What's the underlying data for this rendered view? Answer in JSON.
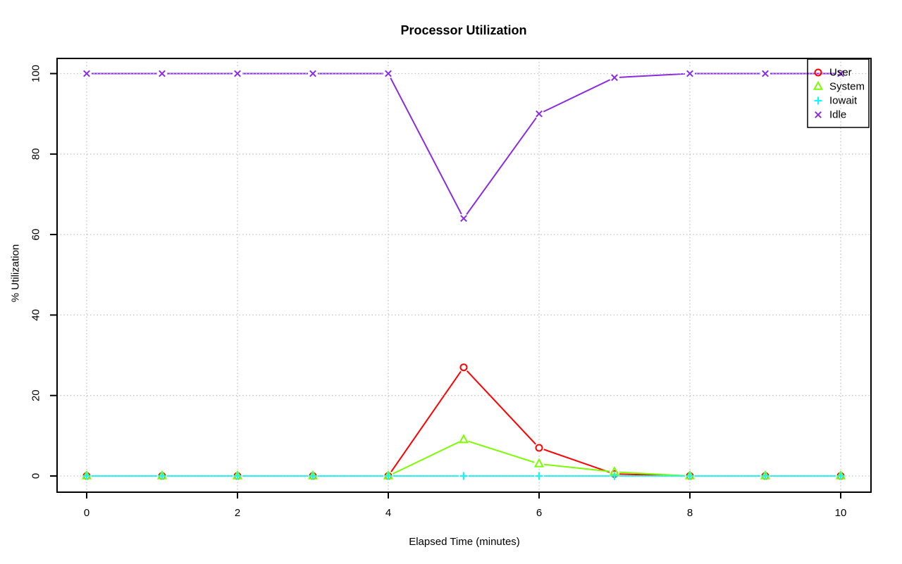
{
  "chart_data": {
    "type": "line",
    "title": "Processor Utilization",
    "xlabel": "Elapsed Time (minutes)",
    "ylabel": "% Utilization",
    "x": [
      0,
      1,
      2,
      3,
      4,
      5,
      6,
      7,
      8,
      9,
      10
    ],
    "series": [
      {
        "name": "User",
        "color": "#ff0000",
        "marker": "circle",
        "values": [
          0,
          0,
          0,
          0,
          0,
          27,
          7,
          0.5,
          0,
          0,
          0
        ]
      },
      {
        "name": "System",
        "color": "#7cfc00",
        "marker": "triangle",
        "values": [
          0,
          0,
          0,
          0,
          0,
          9,
          3,
          1,
          0,
          0,
          0
        ]
      },
      {
        "name": "Iowait",
        "color": "#00ffff",
        "marker": "plus",
        "values": [
          0,
          0,
          0,
          0,
          0,
          0,
          0,
          0,
          0,
          0,
          0
        ]
      },
      {
        "name": "Idle",
        "color": "#8a2be2",
        "marker": "x",
        "values": [
          100,
          100,
          100,
          100,
          100,
          64,
          90,
          99,
          100,
          100,
          100
        ]
      }
    ],
    "xticks": [
      0,
      2,
      4,
      6,
      8,
      10
    ],
    "yticks": [
      0,
      20,
      40,
      60,
      80,
      100
    ],
    "xlim": [
      0,
      10
    ],
    "ylim": [
      0,
      100
    ],
    "grid": true,
    "grid_style": "dotted",
    "grid_color": "#c2c2c2",
    "axis_color": "#000000",
    "background": "#ffffff",
    "legend": {
      "position": "top-right",
      "entries": [
        "User",
        "System",
        "Iowait",
        "Idle"
      ]
    }
  }
}
